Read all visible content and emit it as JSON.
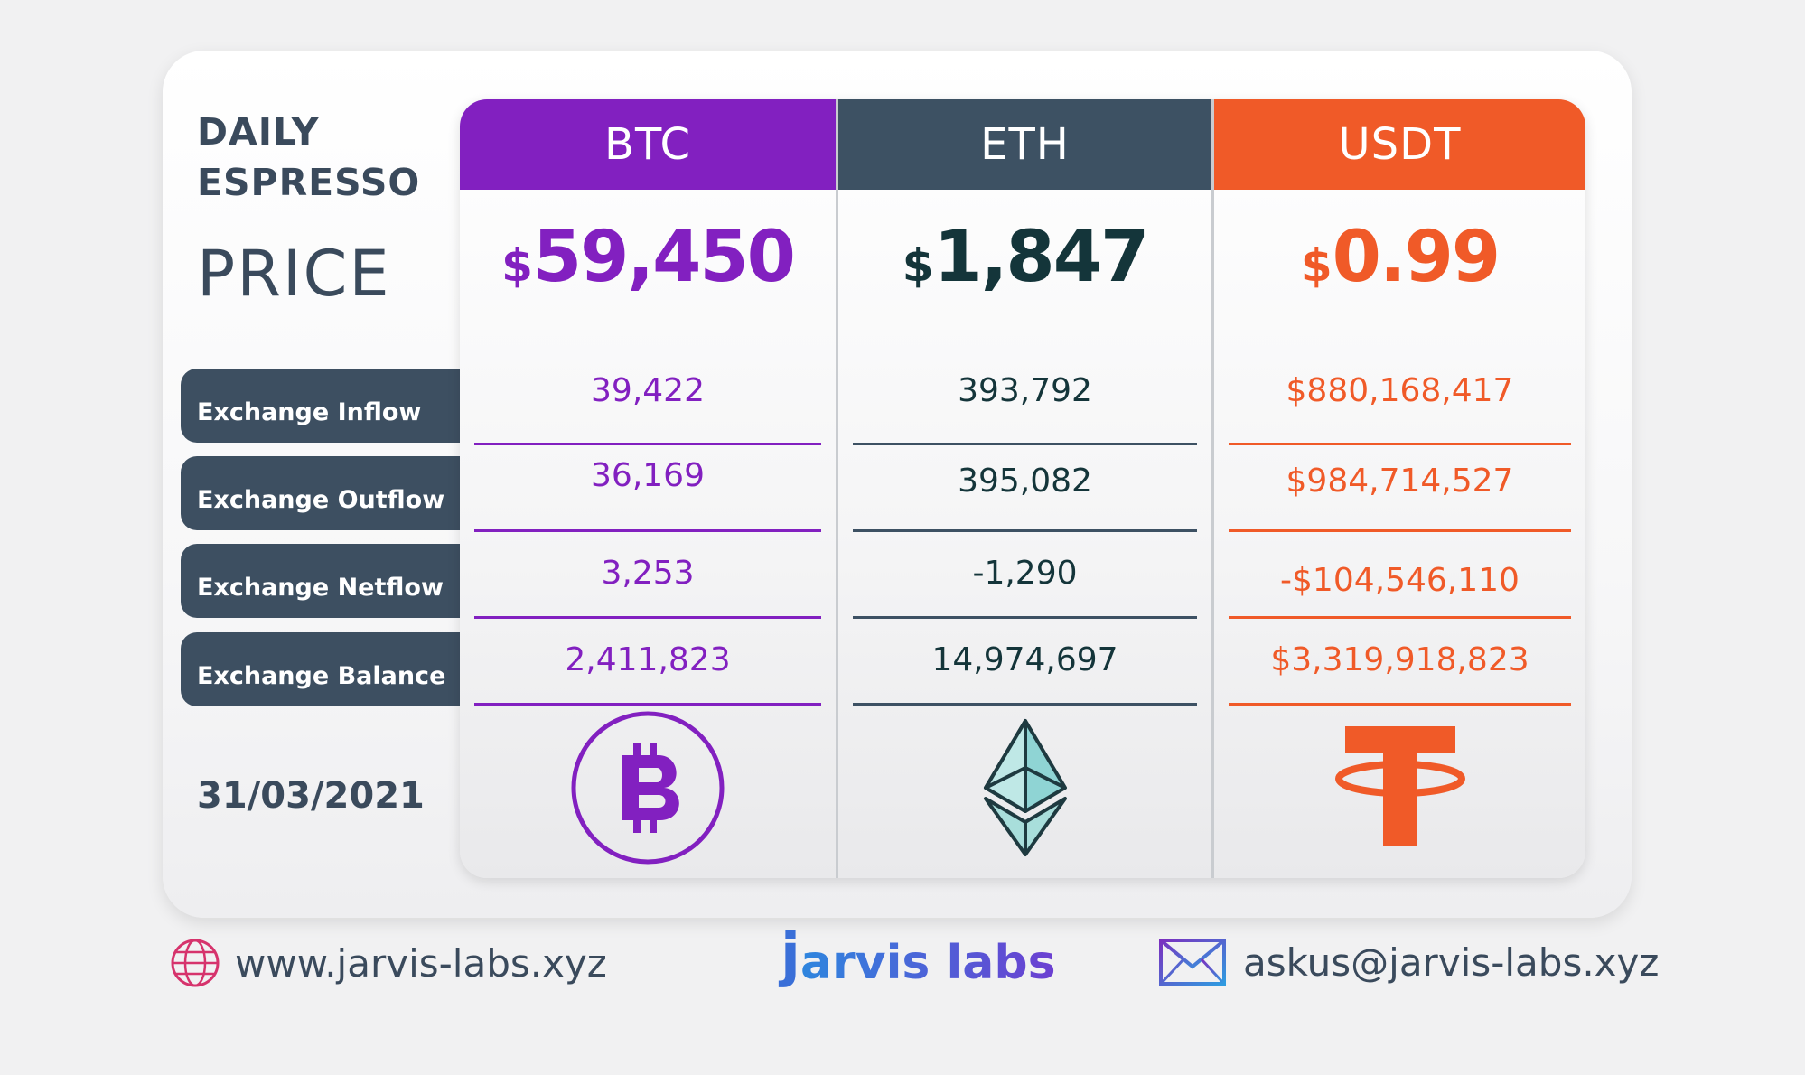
{
  "header": {
    "brand_line1": "DAILY",
    "brand_line2": "ESPRESSO",
    "price_label": "PRICE"
  },
  "row_labels": [
    "Exchange Inflow",
    "Exchange Outflow",
    "Exchange Netflow",
    "Exchange Balance"
  ],
  "date": "31/03/2021",
  "colors": {
    "btc": "#8220c0",
    "eth": "#3d5163",
    "eth_text": "#14353a",
    "usdt": "#f05a28",
    "label_bg": "#3d4f61"
  },
  "coins": [
    {
      "symbol": "BTC",
      "currency": "$",
      "price": "59,450",
      "icon": "bitcoin-icon",
      "values": [
        "39,422",
        "36,169",
        "3,253",
        "2,411,823"
      ]
    },
    {
      "symbol": "ETH",
      "currency": "$",
      "price": "1,847",
      "icon": "ethereum-icon",
      "values": [
        "393,792",
        "395,082",
        "-1,290",
        "14,974,697"
      ]
    },
    {
      "symbol": "USDT",
      "currency": "$",
      "price": "0.99",
      "icon": "tether-icon",
      "values": [
        "$880,168,417",
        "$984,714,527",
        "-$104,546,110",
        "$3,319,918,823"
      ]
    }
  ],
  "footer": {
    "website": "www.jarvis-labs.xyz",
    "logo_j": "j",
    "logo_rest": "arvis labs",
    "email": "askus@jarvis-labs.xyz"
  }
}
